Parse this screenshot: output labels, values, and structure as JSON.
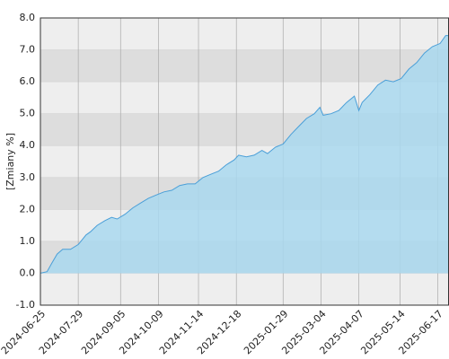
{
  "chart_data": {
    "type": "area",
    "y_label": "[Zmiany %]",
    "x": [
      "2024-06-25",
      "2024-07-01",
      "2024-07-05",
      "2024-07-10",
      "2024-07-15",
      "2024-07-22",
      "2024-07-29",
      "2024-08-05",
      "2024-08-09",
      "2024-08-15",
      "2024-08-22",
      "2024-08-28",
      "2024-09-02",
      "2024-09-09",
      "2024-09-16",
      "2024-09-23",
      "2024-09-30",
      "2024-10-07",
      "2024-10-14",
      "2024-10-21",
      "2024-10-28",
      "2024-11-04",
      "2024-11-11",
      "2024-11-18",
      "2024-11-25",
      "2024-12-02",
      "2024-12-09",
      "2024-12-16",
      "2024-12-20",
      "2024-12-27",
      "2025-01-03",
      "2025-01-10",
      "2025-01-15",
      "2025-01-22",
      "2025-01-29",
      "2025-02-05",
      "2025-02-12",
      "2025-02-19",
      "2025-02-26",
      "2025-03-03",
      "2025-03-06",
      "2025-03-13",
      "2025-03-20",
      "2025-03-27",
      "2025-04-03",
      "2025-04-07",
      "2025-04-10",
      "2025-04-17",
      "2025-04-24",
      "2025-05-01",
      "2025-05-08",
      "2025-05-15",
      "2025-05-22",
      "2025-05-29",
      "2025-06-05",
      "2025-06-12",
      "2025-06-19",
      "2025-06-24",
      "2025-06-27"
    ],
    "values": [
      0.0,
      0.05,
      0.3,
      0.6,
      0.75,
      0.75,
      0.9,
      1.2,
      1.3,
      1.5,
      1.65,
      1.75,
      1.7,
      1.85,
      2.05,
      2.2,
      2.35,
      2.45,
      2.55,
      2.6,
      2.75,
      2.8,
      2.8,
      3.0,
      3.1,
      3.2,
      3.4,
      3.55,
      3.7,
      3.65,
      3.7,
      3.85,
      3.75,
      3.95,
      4.05,
      4.35,
      4.6,
      4.85,
      5.0,
      5.2,
      4.95,
      5.0,
      5.1,
      5.35,
      5.55,
      5.1,
      5.35,
      5.6,
      5.9,
      6.05,
      6.0,
      6.1,
      6.4,
      6.6,
      6.9,
      7.1,
      7.2,
      7.45,
      7.45
    ],
    "color": "#4a9fd8",
    "fill_color": "#a9d8ef",
    "xlim": [
      "2024-06-25",
      "2025-06-27"
    ],
    "xticks": [
      "2024-06-25",
      "2024-07-29",
      "2024-09-05",
      "2024-10-09",
      "2024-11-14",
      "2024-12-18",
      "2025-01-29",
      "2025-03-04",
      "2025-04-07",
      "2025-05-14",
      "2025-06-17"
    ],
    "ylim": [
      -1,
      8
    ],
    "yticks": [
      {
        "value": -1,
        "label": "-1.0"
      },
      {
        "value": 0,
        "label": "0.0"
      },
      {
        "value": 1,
        "label": "1.0"
      },
      {
        "value": 2,
        "label": "2.0"
      },
      {
        "value": 3,
        "label": "3.0"
      },
      {
        "value": 4,
        "label": "4.0"
      },
      {
        "value": 5,
        "label": "5.0"
      },
      {
        "value": 6,
        "label": "6.0"
      },
      {
        "value": 7,
        "label": "7.0"
      },
      {
        "value": 8,
        "label": "8.0"
      }
    ],
    "grid": true
  }
}
